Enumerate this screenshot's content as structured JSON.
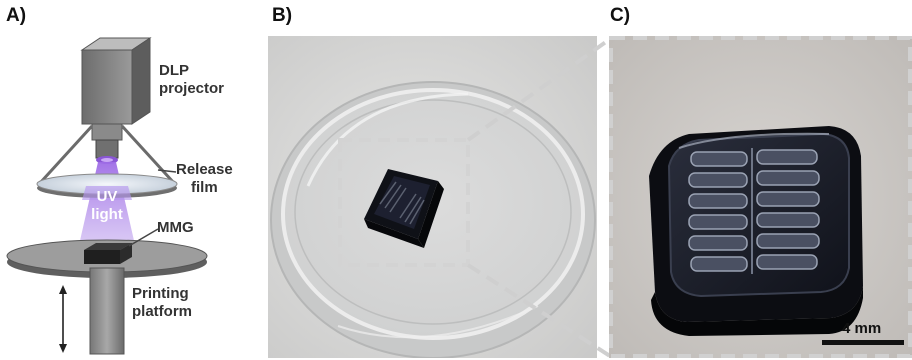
{
  "panels": {
    "a": {
      "label": "A)"
    },
    "b": {
      "label": "B)"
    },
    "c": {
      "label": "C)"
    }
  },
  "schematic": {
    "dlp_line1": "DLP",
    "dlp_line2": "projector",
    "release_line1": "Release",
    "release_line2": "film",
    "uv_line1": "UV",
    "uv_line2": "light",
    "mmg": "MMG",
    "platform_line1": "Printing",
    "platform_line2": "platform"
  },
  "scale_bar": {
    "label": "4 mm"
  },
  "colors": {
    "uv": "#8a56d6",
    "device": "#151820",
    "dashed_box": "#c9c9c9",
    "schematic_gray": "#8c8c8c"
  }
}
